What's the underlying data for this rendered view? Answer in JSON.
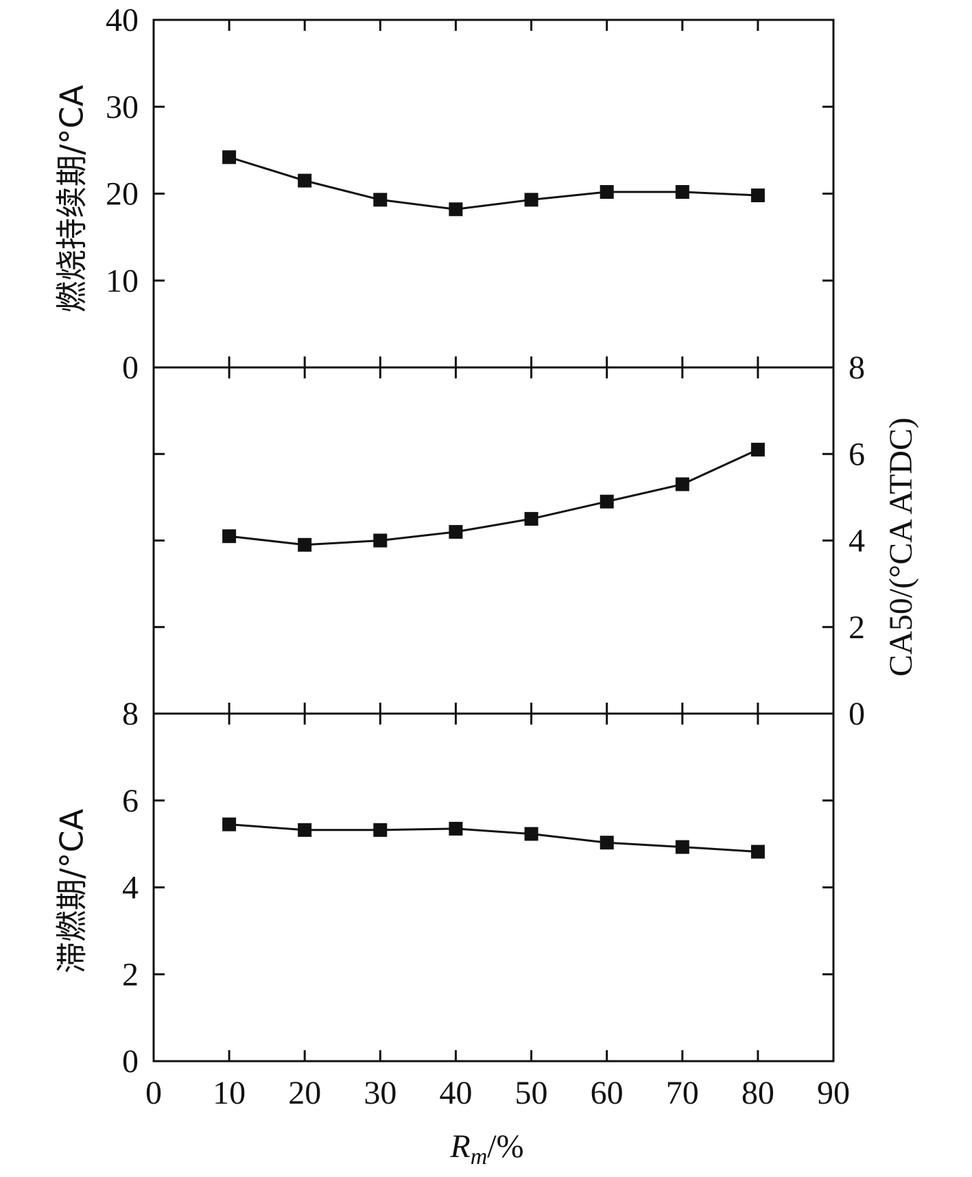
{
  "chart_data": [
    {
      "type": "line",
      "x": [
        10,
        20,
        30,
        40,
        50,
        60,
        70,
        80
      ],
      "series": [
        {
          "values": [
            24.2,
            21.5,
            19.3,
            18.2,
            19.3,
            20.2,
            20.2,
            19.8
          ]
        }
      ],
      "ylabel": "燃烧持续期/°CA",
      "ylim": [
        0,
        40
      ],
      "yticks": [
        "0",
        "10",
        "20",
        "30",
        "40"
      ],
      "yaxis_side": "left",
      "marker": "square"
    },
    {
      "type": "line",
      "x": [
        10,
        20,
        30,
        40,
        50,
        60,
        70,
        80
      ],
      "series": [
        {
          "values": [
            4.1,
            3.9,
            4.0,
            4.2,
            4.5,
            4.9,
            5.3,
            6.1
          ]
        }
      ],
      "ylabel": "CA50/(°CA ATDC)",
      "ylim": [
        0,
        8
      ],
      "yticks": [
        "0",
        "2",
        "4",
        "6",
        "8"
      ],
      "yaxis_side": "right",
      "marker": "square"
    },
    {
      "type": "line",
      "x": [
        10,
        20,
        30,
        40,
        50,
        60,
        70,
        80
      ],
      "series": [
        {
          "values": [
            5.45,
            5.32,
            5.32,
            5.35,
            5.23,
            5.03,
            4.93,
            4.82
          ]
        }
      ],
      "ylabel": "滞燃期/°CA",
      "ylim": [
        0,
        8
      ],
      "yticks": [
        "0",
        "2",
        "4",
        "6",
        "8"
      ],
      "yaxis_side": "left",
      "marker": "square"
    }
  ],
  "x_axis": {
    "xlim": [
      0,
      90
    ],
    "xticks": [
      "0",
      "10",
      "20",
      "30",
      "40",
      "50",
      "60",
      "70",
      "80",
      "90"
    ],
    "xlabel_main": "R",
    "xlabel_sub": "m",
    "xlabel_rest": "/%"
  }
}
